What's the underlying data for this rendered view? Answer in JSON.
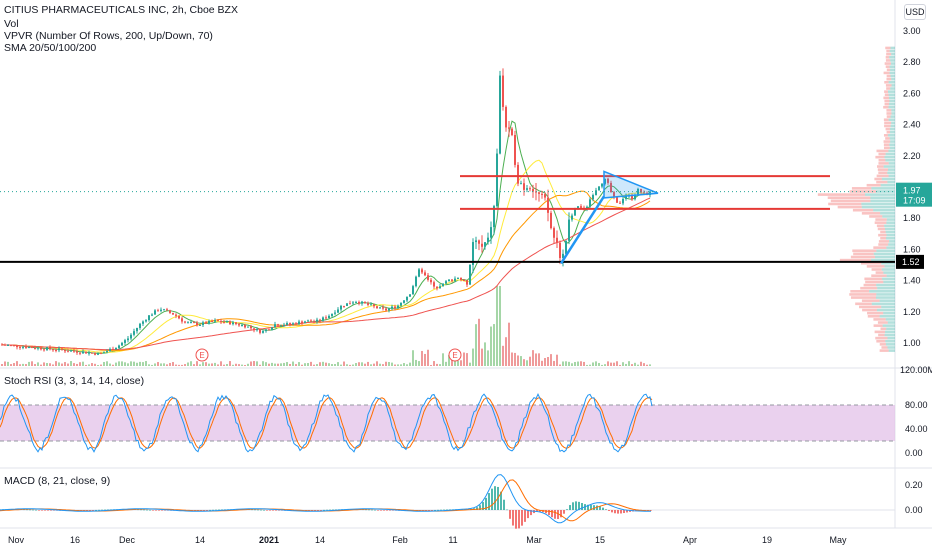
{
  "header": {
    "title": "CITIUS PHARMACEUTICALS INC, 2h, Cboe BZX",
    "volume_label": "Vol",
    "vpvr_label": "VPVR (Number Of Rows, 200, Up/Down, 70)",
    "sma_label": "SMA 20/50/100/200",
    "currency_badge": "USD"
  },
  "price_badges": {
    "last_price": "1.97",
    "countdown": "17:09",
    "support_level": "1.52"
  },
  "indicators": {
    "stoch_label": "Stoch RSI (3, 3, 14, 14, close)",
    "macd_label": "MACD (8, 21, close, 9)"
  },
  "earnings_markers": [
    "E",
    "E"
  ],
  "colors": {
    "up": "#26a69a",
    "down": "#ef5350",
    "sma20": "#4caf50",
    "sma50": "#ffeb3b",
    "sma100": "#ff9800",
    "sma200": "#ef5350",
    "triangle": "#2196f3",
    "resistance_lines": "#e53935",
    "support_line": "#000000",
    "stoch_band": "#e1bee7",
    "stoch_k": "#2196f3",
    "stoch_d": "#ff6d00",
    "macd": "#2196f3",
    "macd_signal": "#ff6d00"
  },
  "chart_data": [
    {
      "type": "candlestick",
      "title": "CITIUS PHARMACEUTICALS INC, 2h, Cboe BZX",
      "y_axis_ticks": [
        "3.00",
        "2.80",
        "2.60",
        "2.40",
        "2.20",
        "2.00",
        "1.80",
        "1.60",
        "1.40",
        "1.20",
        "1.00"
      ],
      "ylim": [
        0.88,
        3.05
      ],
      "x_axis_ticks": [
        "Nov",
        "16",
        "Dec",
        "14",
        "2021",
        "14",
        "Feb",
        "11",
        "Mar",
        "15",
        "Apr",
        "19",
        "May"
      ],
      "horizontal_levels": [
        2.07,
        1.86,
        1.52
      ],
      "points": [
        {
          "x": "Nov",
          "close": 0.98
        },
        {
          "x": "16",
          "close": 0.93
        },
        {
          "x": "Dec",
          "close": 1.02
        },
        {
          "x": "Dec 8",
          "close": 1.2
        },
        {
          "x": "14",
          "close": 1.12
        },
        {
          "x": "2021",
          "close": 1.07
        },
        {
          "x": "14",
          "close": 1.15
        },
        {
          "x": "Jan 28",
          "close": 1.27
        },
        {
          "x": "Feb",
          "close": 1.24
        },
        {
          "x": "Feb 8",
          "close": 1.42
        },
        {
          "x": "11",
          "close": 1.68
        },
        {
          "x": "Feb 17",
          "close": 2.8
        },
        {
          "x": "Feb 19",
          "close": 2.3
        },
        {
          "x": "Feb 24",
          "close": 2.0
        },
        {
          "x": "Mar",
          "close": 1.95
        },
        {
          "x": "Mar 5",
          "close": 1.5
        },
        {
          "x": "Mar 10",
          "close": 1.85
        },
        {
          "x": "15",
          "close": 2.05
        },
        {
          "x": "Mar 19",
          "close": 1.9
        },
        {
          "x": "Mar 24",
          "close": 1.97
        }
      ]
    },
    {
      "type": "bar",
      "title": "Vol",
      "y_axis_ticks": [
        "120.00M"
      ]
    },
    {
      "type": "line",
      "title": "Stoch RSI (3, 3, 14, 14, close)",
      "y_axis_ticks": [
        "80.00",
        "40.00",
        "0.00"
      ],
      "ylim": [
        0,
        100
      ],
      "bands": [
        20,
        80
      ]
    },
    {
      "type": "line",
      "title": "MACD (8, 21, close, 9)",
      "y_axis_ticks": [
        "0.20",
        "0.00"
      ],
      "ylim": [
        -0.15,
        0.3
      ]
    }
  ]
}
